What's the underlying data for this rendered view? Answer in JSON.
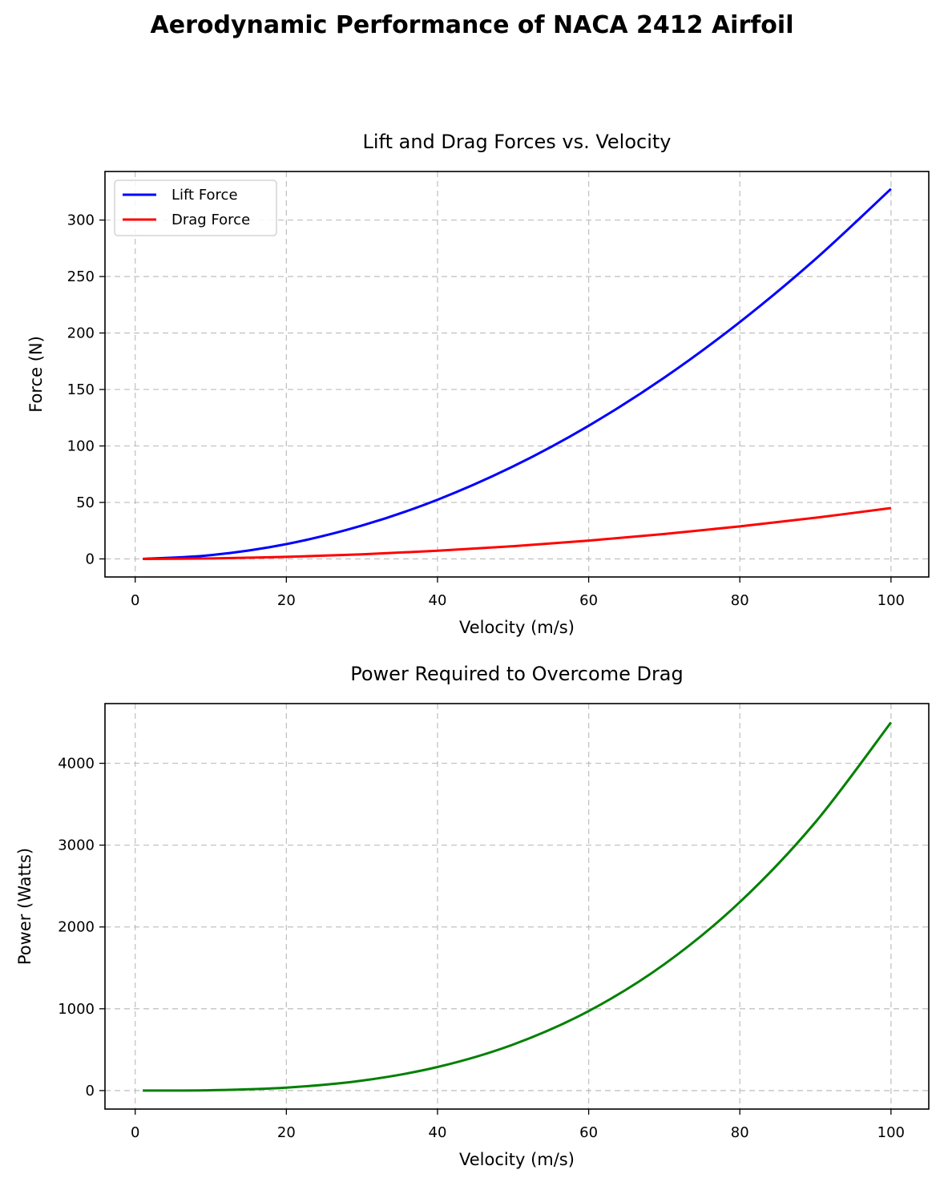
{
  "suptitle": "Aerodynamic Performance of NACA 2412 Airfoil",
  "chart_data": [
    {
      "type": "line",
      "title": "Lift and Drag Forces vs. Velocity",
      "xlabel": "Velocity (m/s)",
      "ylabel": "Force (N)",
      "xlim": [
        -4,
        105
      ],
      "ylim": [
        -16,
        343
      ],
      "xticks": [
        0,
        20,
        40,
        60,
        80,
        100
      ],
      "yticks": [
        0,
        50,
        100,
        150,
        200,
        250,
        300
      ],
      "grid": true,
      "legend": "upper left",
      "x": [
        1,
        10,
        20,
        30,
        40,
        50,
        60,
        70,
        80,
        90,
        100
      ],
      "series": [
        {
          "name": "Lift Force",
          "color": "#0000ff",
          "values": [
            0.03,
            3.3,
            13.1,
            29.5,
            52.4,
            81.9,
            117.9,
            160.5,
            209.7,
            265.4,
            327.6
          ]
        },
        {
          "name": "Drag Force",
          "color": "#ff0000",
          "values": [
            0.0,
            0.45,
            1.8,
            4.05,
            7.2,
            11.25,
            16.2,
            22.05,
            28.8,
            36.45,
            45.0
          ]
        }
      ]
    },
    {
      "type": "line",
      "title": "Power Required to Overcome Drag",
      "xlabel": "Velocity (m/s)",
      "ylabel": "Power (Watts)",
      "xlim": [
        -4,
        105
      ],
      "ylim": [
        -226,
        4730
      ],
      "xticks": [
        0,
        20,
        40,
        60,
        80,
        100
      ],
      "yticks": [
        0,
        1000,
        2000,
        3000,
        4000
      ],
      "grid": true,
      "x": [
        1,
        10,
        20,
        30,
        40,
        50,
        60,
        70,
        80,
        90,
        100
      ],
      "series": [
        {
          "name": "",
          "color": "#008000",
          "values": [
            0.0,
            4.5,
            36,
            121.5,
            288,
            562.5,
            972,
            1543.5,
            2304,
            3280.5,
            4500
          ]
        }
      ]
    }
  ]
}
